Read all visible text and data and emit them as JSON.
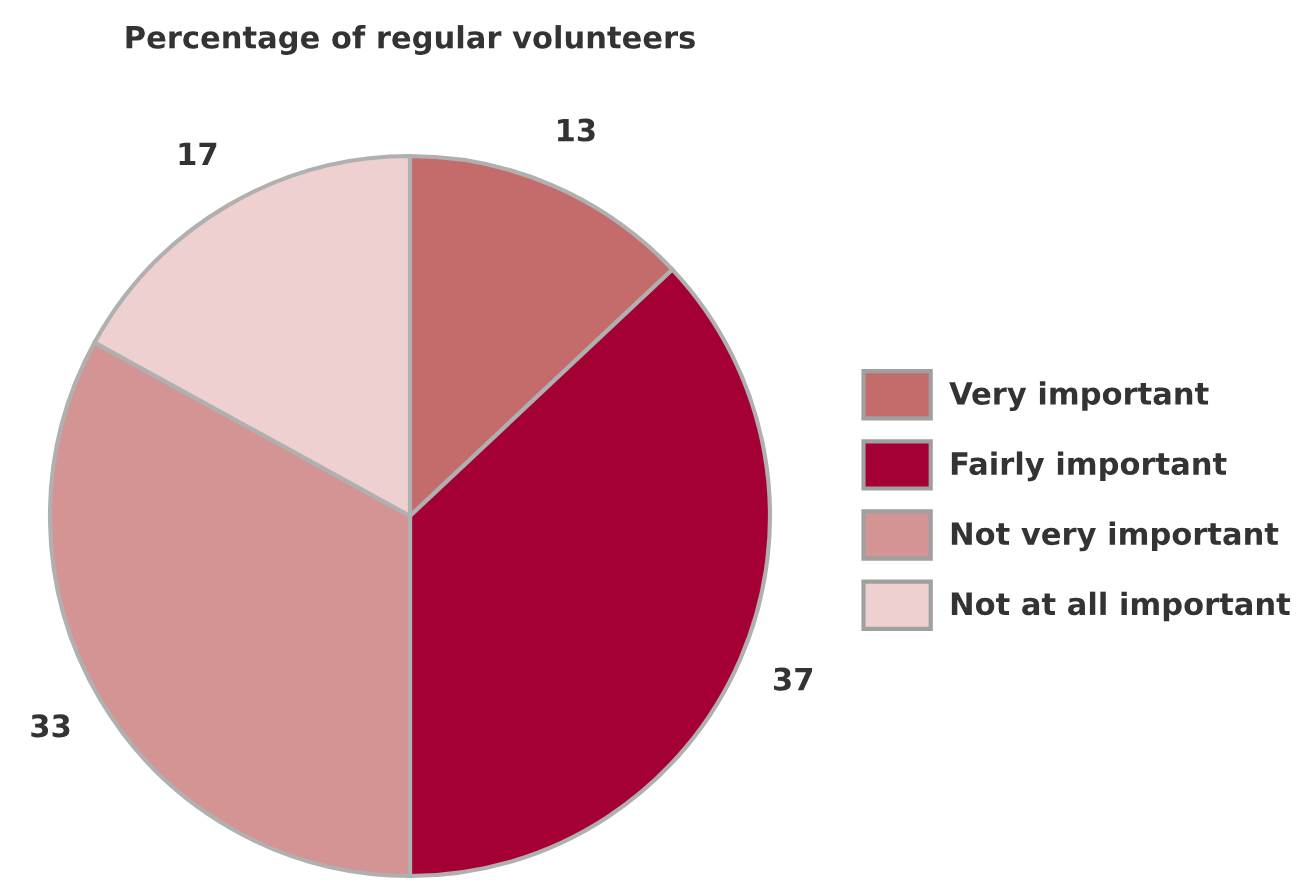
{
  "chart_data": {
    "type": "pie",
    "title": "Percentage of regular volunteers",
    "categories": [
      "Very important",
      "Fairly important",
      "Not very important",
      "Not at all important"
    ],
    "values": [
      13,
      37,
      33,
      17
    ],
    "colors": [
      "#c46b6b",
      "#a50034",
      "#d49493",
      "#efd0d0"
    ],
    "data_labels": true,
    "legend": "right"
  }
}
